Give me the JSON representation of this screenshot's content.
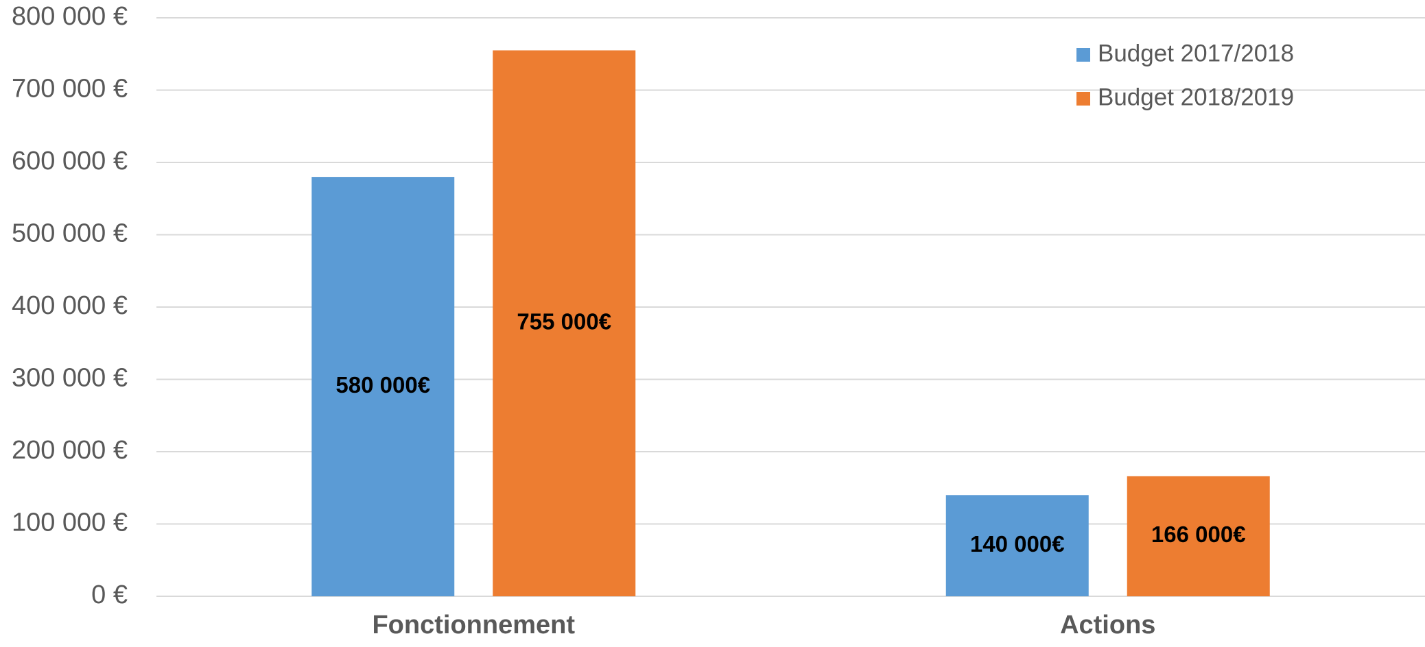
{
  "chart_data": {
    "type": "bar",
    "categories": [
      "Fonctionnement",
      "Actions"
    ],
    "series": [
      {
        "name": "Budget 2017/2018",
        "color": "#5B9BD5",
        "values": [
          580000,
          140000
        ],
        "labels": [
          "580 000€",
          "140 000€"
        ]
      },
      {
        "name": "Budget 2018/2019",
        "color": "#ED7D31",
        "values": [
          755000,
          166000
        ],
        "labels": [
          "755 000€",
          "166 000€"
        ]
      }
    ],
    "ylim": [
      0,
      800000
    ],
    "yticks": [
      0,
      100000,
      200000,
      300000,
      400000,
      500000,
      600000,
      700000,
      800000
    ],
    "ytick_labels": [
      "0 €",
      "100 000 €",
      "200 000 €",
      "300 000 €",
      "400 000 €",
      "500 000 €",
      "600 000 €",
      "700 000 €",
      "800 000 €"
    ],
    "grid": true,
    "grid_color": "#D9D9D9",
    "legend": "top-right",
    "title": "",
    "xlabel": "",
    "ylabel": ""
  }
}
